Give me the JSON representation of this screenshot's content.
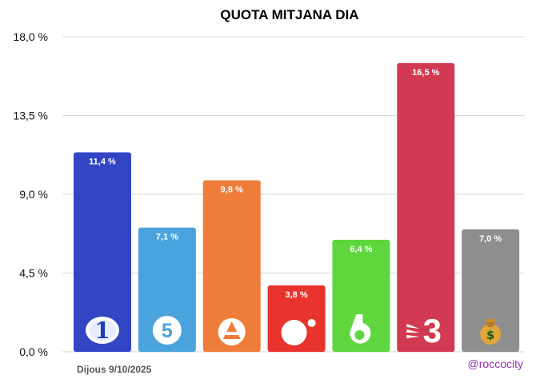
{
  "chart_data": {
    "type": "bar",
    "title": "QUOTA MITJANA DIA",
    "xlabel": "",
    "ylabel": "",
    "ylim": [
      0,
      18
    ],
    "y_ticks": [
      "0,0 %",
      "4,5 %",
      "9,0 %",
      "13,5 %",
      "18,0 %"
    ],
    "y_tick_values": [
      0,
      4.5,
      9,
      13.5,
      18
    ],
    "grid": true,
    "categories": [
      "La 1",
      "Telecinco",
      "Antena 3",
      "Cuatro",
      "laSexta",
      "TV3",
      "Others"
    ],
    "values": [
      11.4,
      7.1,
      9.8,
      3.8,
      6.4,
      16.5,
      7.0
    ],
    "value_labels": [
      "11,4 %",
      "7,1 %",
      "9,8 %",
      "3,8 %",
      "6,4 %",
      "16,5 %",
      "7,0 %"
    ],
    "colors": [
      "#3246c4",
      "#4aa3dc",
      "#ef7d3a",
      "#e8342c",
      "#5fd63e",
      "#d13a52",
      "#8e8e8e"
    ],
    "icons": [
      "la1-logo-icon",
      "telecinco-logo-icon",
      "antena3-logo-icon",
      "cuatro-logo-icon",
      "lasexta-logo-icon",
      "tv3-logo-icon",
      "money-bag-icon"
    ]
  },
  "footer": {
    "date": "Dijous 9/10/2025",
    "handle": "@roccocity"
  }
}
